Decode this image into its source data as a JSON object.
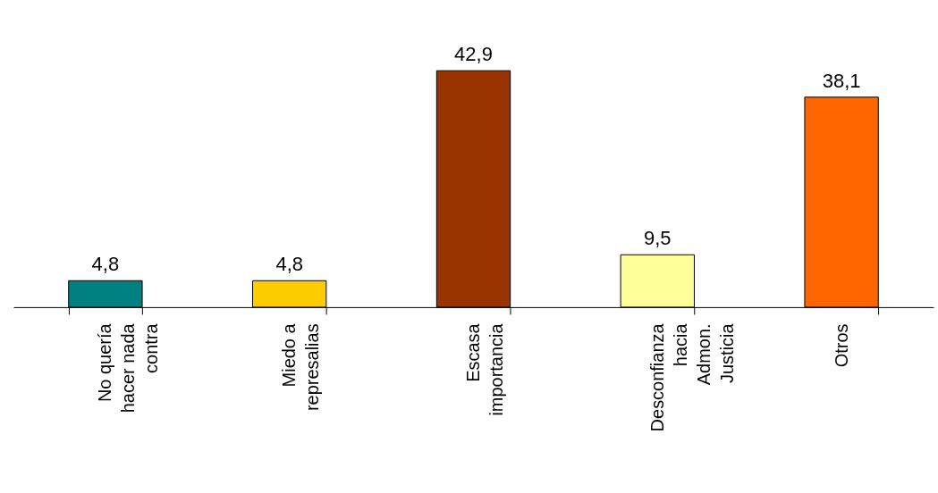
{
  "chart_data": {
    "type": "bar",
    "categories": [
      "No quería\nhacer nada\ncontra",
      "Miedo a\nrepresalias",
      "Escasa\nimportancia",
      "Desconfianza\nhacia\nAdmon.\nJusticia",
      "Otros"
    ],
    "values": [
      4.8,
      4.8,
      42.9,
      9.5,
      38.1
    ],
    "colors": [
      "#008080",
      "#ffcc00",
      "#993300",
      "#ffff99",
      "#ff6600"
    ],
    "value_labels": [
      "4,8",
      "4,8",
      "42,9",
      "9,5",
      "38,1"
    ]
  }
}
